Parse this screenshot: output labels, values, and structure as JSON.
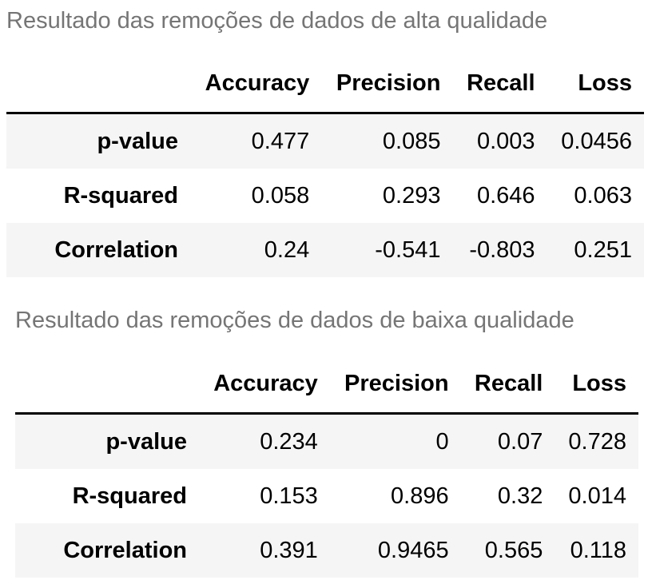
{
  "tables": [
    {
      "caption": "Resultado das remoções de dados de alta qualidade",
      "columns": [
        "Accuracy",
        "Precision",
        "Recall",
        "Loss"
      ],
      "rows": [
        {
          "label": "p-value",
          "cells": [
            "0.477",
            "0.085",
            "0.003",
            "0.0456"
          ]
        },
        {
          "label": "R-squared",
          "cells": [
            "0.058",
            "0.293",
            "0.646",
            "0.063"
          ]
        },
        {
          "label": "Correlation",
          "cells": [
            "0.24",
            "-0.541",
            "-0.803",
            "0.251"
          ]
        }
      ]
    },
    {
      "caption": "Resultado das remoções de dados de baixa qualidade",
      "columns": [
        "Accuracy",
        "Precision",
        "Recall",
        "Loss"
      ],
      "rows": [
        {
          "label": "p-value",
          "cells": [
            "0.234",
            "0",
            "0.07",
            "0.728"
          ]
        },
        {
          "label": "R-squared",
          "cells": [
            "0.153",
            "0.896",
            "0.32",
            "0.014"
          ]
        },
        {
          "label": "Correlation",
          "cells": [
            "0.391",
            "0.9465",
            "0.565",
            "0.118"
          ]
        }
      ]
    }
  ],
  "colors": {
    "caption": "#757575",
    "stripe": "#f5f5f5",
    "header_rule": "#000000"
  }
}
